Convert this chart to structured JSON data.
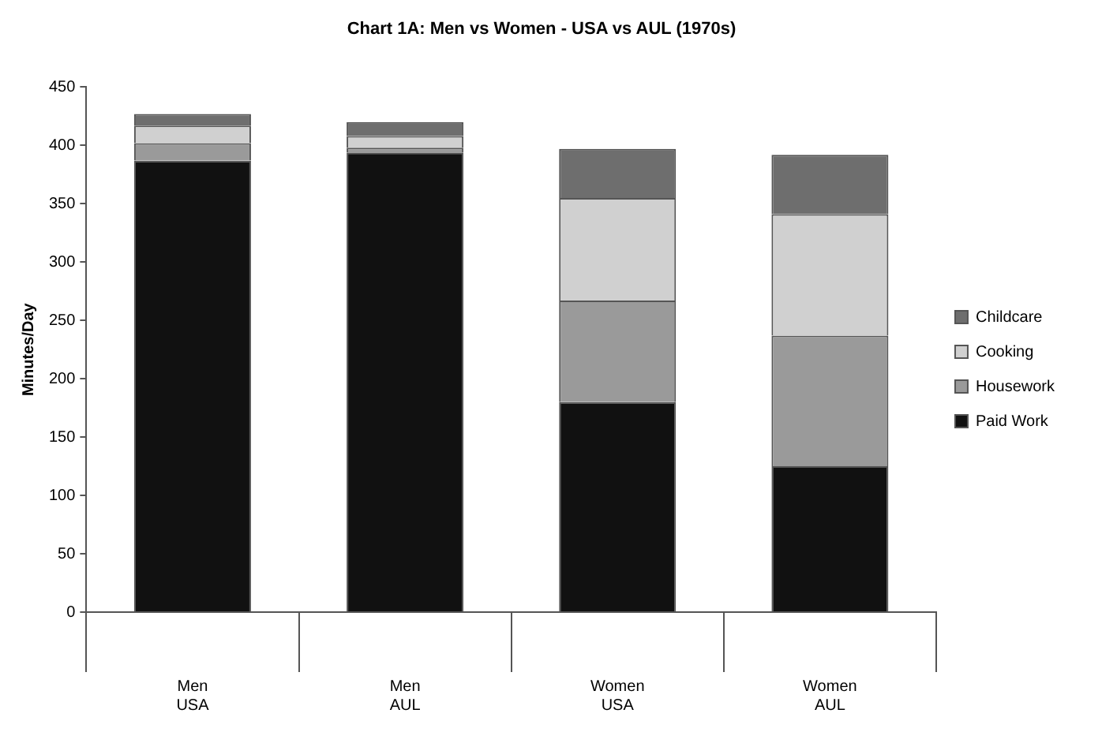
{
  "chart_data": {
    "type": "bar",
    "title": "Chart 1A: Men vs Women - USA vs AUL (1970s)",
    "ylabel": "Minutes/Day",
    "categories": [
      "Men\nUSA",
      "Men\nAUL",
      "Women\nUSA",
      "Women\nAUL"
    ],
    "stacked": true,
    "series": [
      {
        "name": "Paid Work",
        "color": "#111111",
        "values": [
          387,
          394,
          180,
          125
        ]
      },
      {
        "name": "Housework",
        "color": "#9a9a9a",
        "values": [
          15,
          4,
          87,
          112
        ]
      },
      {
        "name": "Cooking",
        "color": "#d0d0d0",
        "values": [
          15,
          10,
          88,
          104
        ]
      },
      {
        "name": "Childcare",
        "color": "#6e6e6e",
        "values": [
          10,
          12,
          42,
          51
        ]
      }
    ],
    "ylim": [
      0,
      450
    ],
    "yticks": [
      0,
      50,
      100,
      150,
      200,
      250,
      300,
      350,
      400,
      450
    ],
    "grid": false,
    "legend": "right"
  }
}
